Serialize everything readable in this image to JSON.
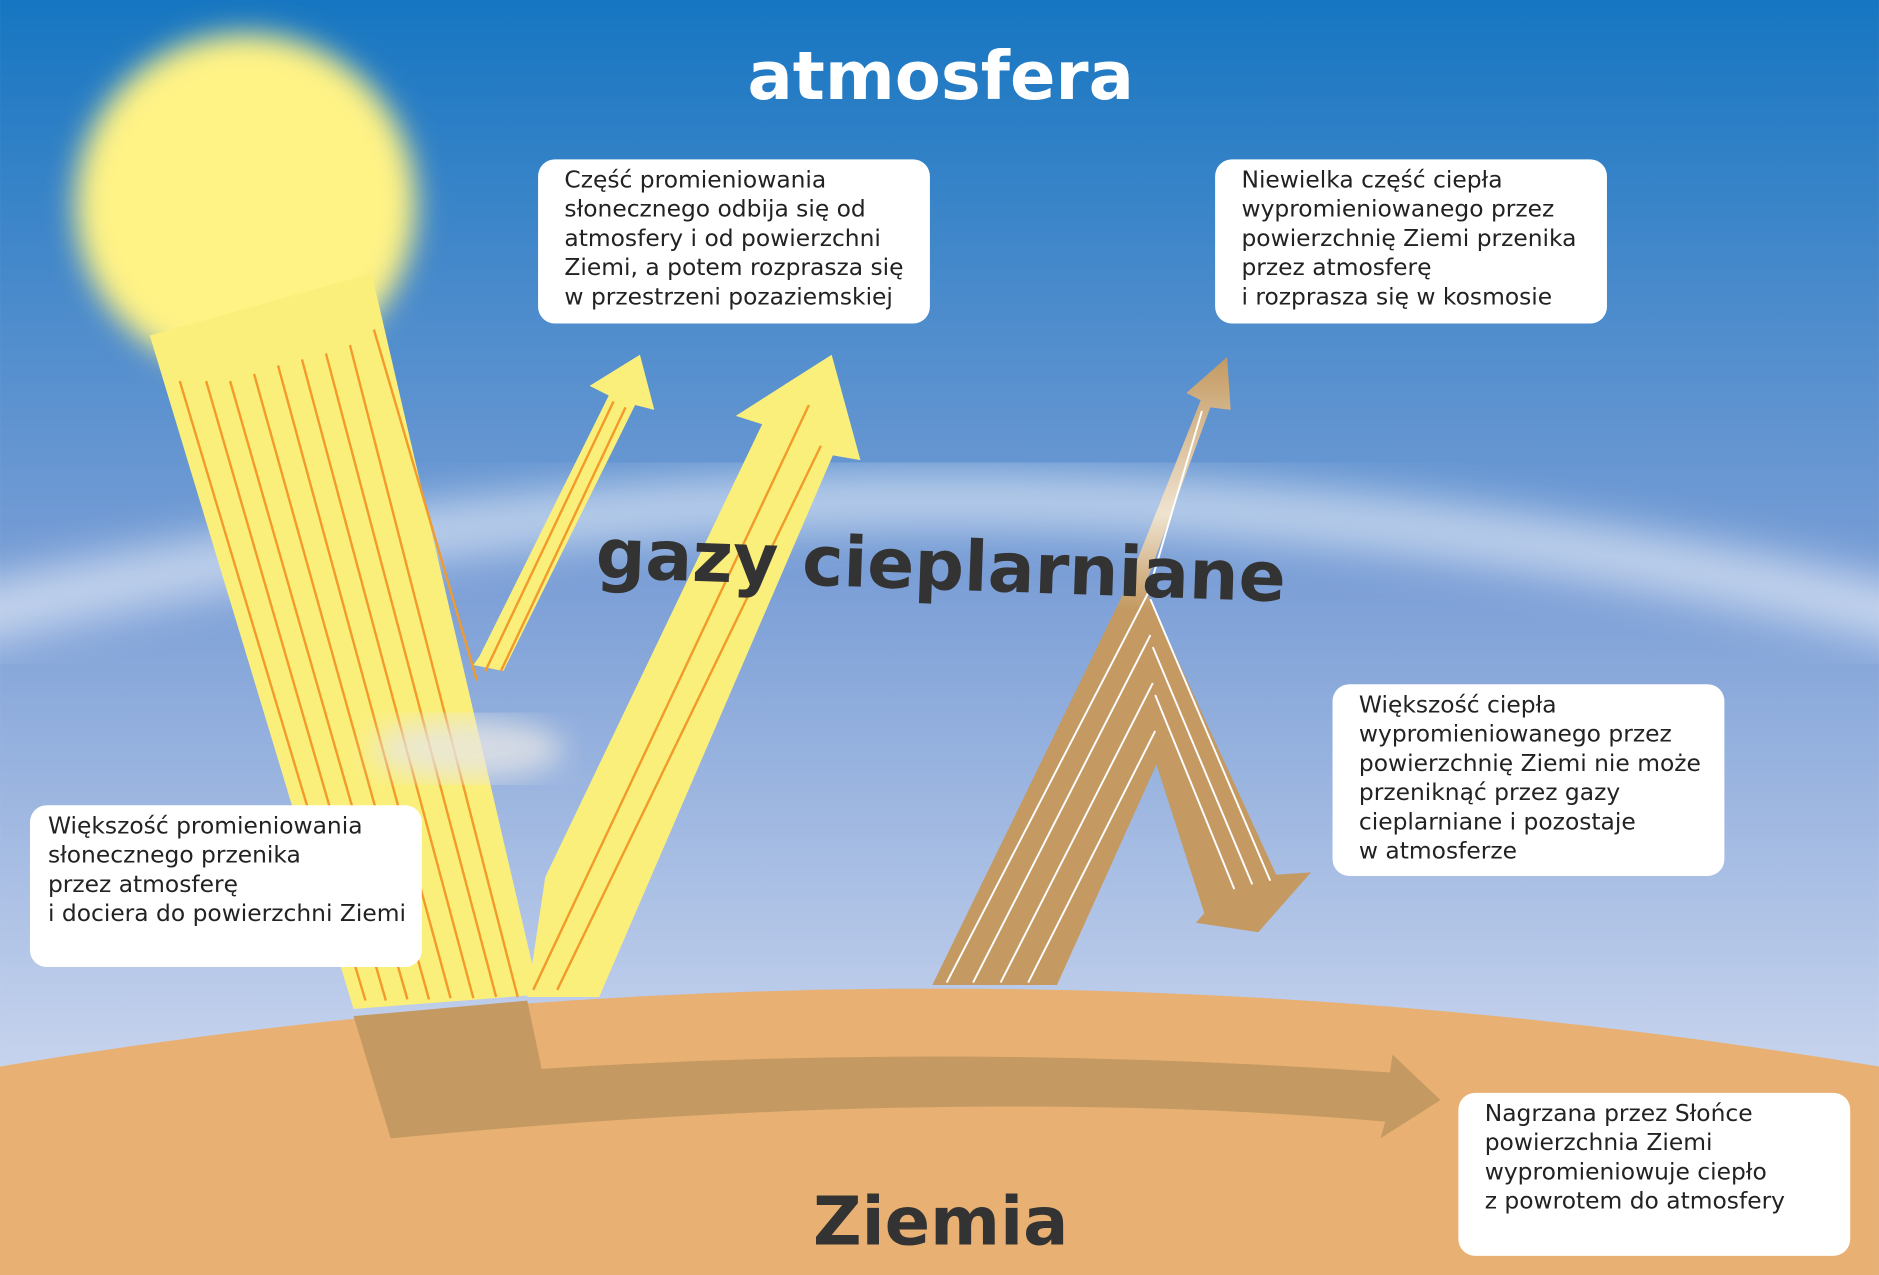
{
  "labels": {
    "atmosphere": "atmosfera",
    "greenhouse": "gazy cieplarniane",
    "earth": "Ziemia"
  },
  "boxes": [
    {
      "lines": [
        "Część promieniowania",
        "słonecznego odbija się od",
        "atmosfery i od powierzchni",
        "Ziemi, a potem rozprasza się",
        "w przestrzeni pozaziemskiej"
      ]
    },
    {
      "lines": [
        "Niewielka część ciepła",
        "wypromieniowanego przez",
        "powierzchnię Ziemi przenika",
        "przez atmosferę",
        "i rozprasza się w kosmosie"
      ]
    },
    {
      "lines": [
        "Większość ciepła",
        "wypromieniowanego przez",
        "powierzchnię Ziemi nie może",
        "przeniknąć przez gazy",
        "cieplarniane i pozostaje",
        "w atmosferze"
      ]
    },
    {
      "lines": [
        "Większość promieniowania",
        "słonecznego przenika",
        "przez atmosferę",
        "i dociera do powierzchni Ziemi"
      ]
    },
    {
      "lines": [
        "Nagrzana przez Słońce",
        "powierzchnia Ziemi",
        "wypromieniowuje ciepło",
        "z powrotem do atmosfery"
      ]
    }
  ]
}
